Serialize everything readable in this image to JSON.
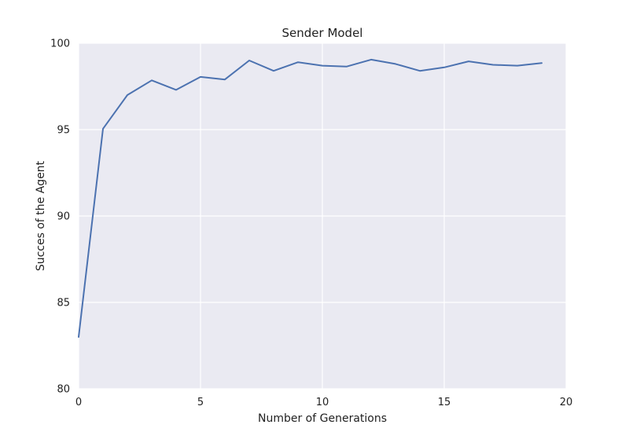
{
  "chart_data": {
    "type": "line",
    "title": "Sender Model",
    "xlabel": "Number of Generations",
    "ylabel": "Succes of the Agent",
    "xlim": [
      0,
      20
    ],
    "ylim": [
      80,
      100
    ],
    "xticks": [
      0,
      5,
      10,
      15,
      20
    ],
    "yticks": [
      80,
      85,
      90,
      95,
      100
    ],
    "grid": true,
    "series": [
      {
        "x": [
          0,
          1,
          2,
          3,
          4,
          5,
          6,
          7,
          8,
          9,
          10,
          11,
          12,
          13,
          14,
          15,
          16,
          17,
          18,
          19
        ],
        "values": [
          83.0,
          95.05,
          97.0,
          97.85,
          97.3,
          98.05,
          97.9,
          99.0,
          98.4,
          98.9,
          98.7,
          98.65,
          99.05,
          98.8,
          98.4,
          98.6,
          98.95,
          98.75,
          98.7,
          98.85
        ],
        "color": "#4c72b0"
      }
    ]
  },
  "style": {
    "plot_background": "#eaeaf2",
    "grid_color": "#ffffff",
    "line_color": "#4c72b0"
  }
}
